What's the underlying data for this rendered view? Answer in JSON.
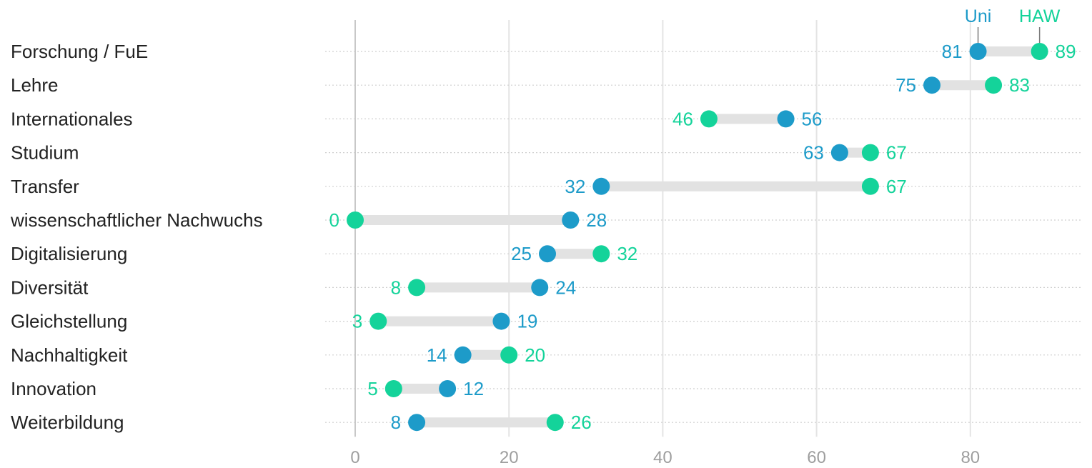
{
  "chart_data": {
    "type": "dumbbell",
    "categories": [
      "Forschung / FuE",
      "Lehre",
      "Internationales",
      "Studium",
      "Transfer",
      "wissenschaftlicher Nachwuchs",
      "Digitalisierung",
      "Diversität",
      "Gleichstellung",
      "Nachhaltigkeit",
      "Innovation",
      "Weiterbildung"
    ],
    "series": [
      {
        "name": "Uni",
        "color": "#1d9bc9",
        "values": [
          81,
          75,
          56,
          63,
          32,
          28,
          25,
          24,
          19,
          14,
          12,
          8
        ]
      },
      {
        "name": "HAW",
        "color": "#14d39a",
        "values": [
          89,
          83,
          46,
          67,
          67,
          0,
          32,
          8,
          3,
          20,
          5,
          26
        ]
      }
    ],
    "xlim": [
      0,
      95
    ],
    "xticks": [
      0,
      20,
      40,
      60,
      80
    ],
    "grid": true,
    "legend_placement": "top-right",
    "connector_color": "#e2e2e2",
    "title": "",
    "xlabel": "",
    "ylabel": ""
  }
}
